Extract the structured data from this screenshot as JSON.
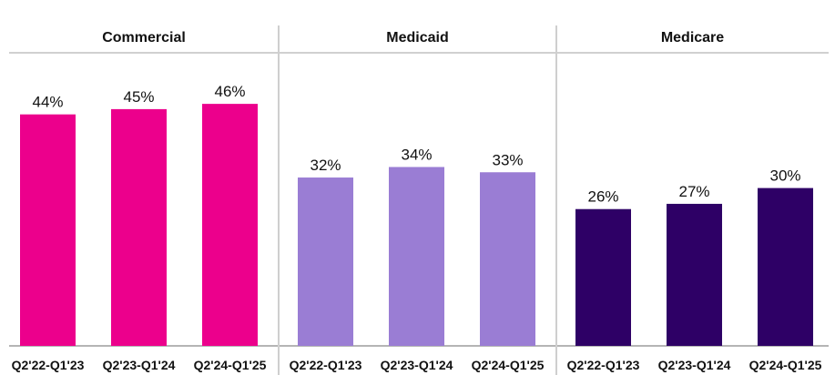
{
  "chart_data": {
    "type": "bar",
    "ylim": [
      0,
      60
    ],
    "grid": false,
    "panels": [
      {
        "title": "Commercial",
        "color": "#EC008C",
        "categories": [
          "Q2'22-Q1'23",
          "Q2'23-Q1'24",
          "Q2'24-Q1'25"
        ],
        "values": [
          44,
          45,
          46
        ],
        "labels": [
          "44%",
          "45%",
          "46%"
        ]
      },
      {
        "title": "Medicaid",
        "color": "#9A7DD4",
        "categories": [
          "Q2'22-Q1'23",
          "Q2'23-Q1'24",
          "Q2'24-Q1'25"
        ],
        "values": [
          32,
          34,
          33
        ],
        "labels": [
          "32%",
          "34%",
          "33%"
        ]
      },
      {
        "title": "Medicare",
        "color": "#2E0066",
        "categories": [
          "Q2'22-Q1'23",
          "Q2'23-Q1'24",
          "Q2'24-Q1'25"
        ],
        "values": [
          26,
          27,
          30
        ],
        "labels": [
          "26%",
          "27%",
          "30%"
        ]
      }
    ]
  }
}
